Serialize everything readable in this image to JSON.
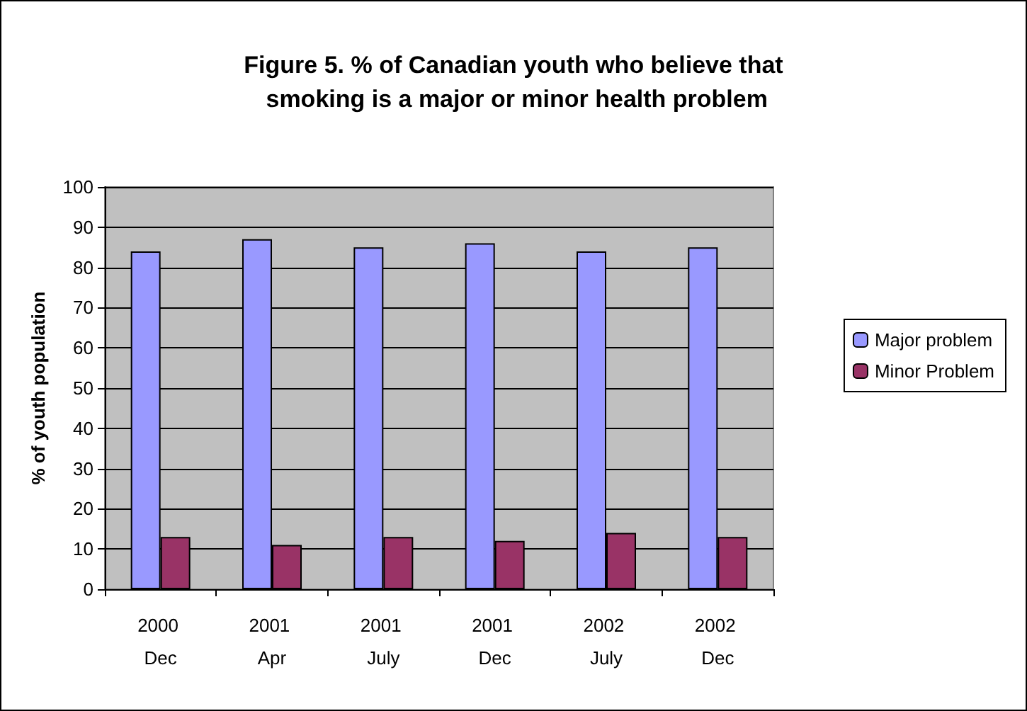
{
  "chart_data": {
    "type": "bar",
    "title": "Figure 5. % of Canadian youth who believe that smoking is a major or minor health problem",
    "ylabel": "% of youth population",
    "categories": [
      "2000 Dec",
      "2001 Apr",
      "2001 July",
      "2001 Dec",
      "2002 July",
      "2002 Dec"
    ],
    "series": [
      {
        "name": "Major problem",
        "color": "#9999ff",
        "values": [
          84,
          87,
          85,
          86,
          84,
          85
        ]
      },
      {
        "name": "Minor Problem",
        "color": "#993366",
        "values": [
          13,
          11,
          13,
          12,
          14,
          13
        ]
      }
    ],
    "ylim": [
      0,
      100
    ],
    "yticks": [
      0,
      10,
      20,
      30,
      40,
      50,
      60,
      70,
      80,
      90,
      100
    ],
    "grid": "y",
    "legend": "right"
  }
}
